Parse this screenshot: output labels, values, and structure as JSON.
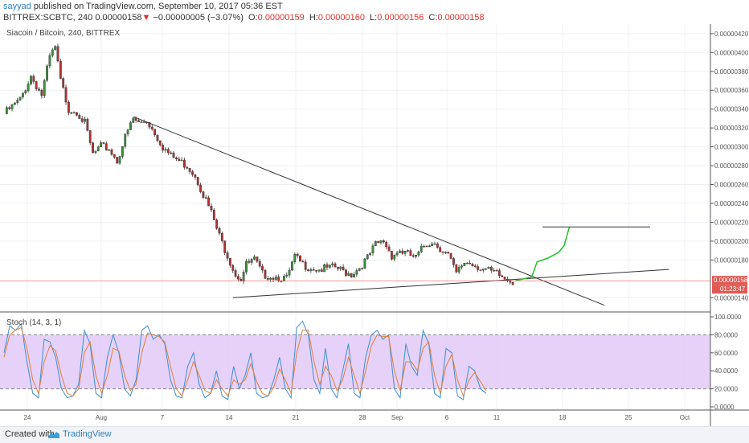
{
  "header": {
    "user": "sayyad",
    "published": "published on TradingView.com, September 10, 2017 05:36 EST",
    "symbol": "BITTREX:SCBTC, 240",
    "last": "0.00000158",
    "arrow": "▼",
    "change": "−0.00000005 (−3.07%)",
    "o_label": "O:",
    "o_val": "0.00000159",
    "h_label": "H:",
    "h_val": "0.00000160",
    "l_label": "L:",
    "l_val": "0.00000156",
    "c_label": "C:",
    "c_val": "0.00000158"
  },
  "footer": {
    "created": "Created with",
    "brand": "TradingView"
  },
  "colors": {
    "up": "#3c8c3c",
    "down": "#b03030",
    "stoch_k": "#3d8fd6",
    "stoch_d": "#e0813a",
    "band": "#e3ccf7",
    "projection": "#22c22a",
    "price_line": "#e05a55"
  },
  "chart_data": [
    {
      "type": "candlestick",
      "title": "Siacoin / Bitcoin, 240, BITTREX",
      "ylim": [
        1.3e-06,
        4.25e-06
      ],
      "y_ticks": [
        "0.00000420",
        "0.00000400",
        "0.00000380",
        "0.00000360",
        "0.00000340",
        "0.00000320",
        "0.00000300",
        "0.00000280",
        "0.00000260",
        "0.00000240",
        "0.00000220",
        "0.00000200",
        "0.00000180",
        "0.00000140"
      ],
      "x_ticks": [
        "24",
        "Aug",
        "7",
        "14",
        "21",
        "28",
        "Sep",
        "6",
        "11",
        "18",
        "25",
        "Oct"
      ],
      "last_price_label": "0.00000158",
      "countdown": "01:23:47",
      "close_path": [
        [
          0,
          3.35e-06
        ],
        [
          6,
          3.5e-06
        ],
        [
          10,
          3.75e-06
        ],
        [
          14,
          3.55e-06
        ],
        [
          17,
          3.95e-06
        ],
        [
          19,
          4.05e-06
        ],
        [
          21,
          3.7e-06
        ],
        [
          24,
          3.4e-06
        ],
        [
          27,
          3.38e-06
        ],
        [
          30,
          3.25e-06
        ],
        [
          33,
          2.92e-06
        ],
        [
          36,
          3e-06
        ],
        [
          39,
          2.98e-06
        ],
        [
          42,
          2.85e-06
        ],
        [
          45,
          3.1e-06
        ],
        [
          48,
          3.3e-06
        ],
        [
          50,
          3.25e-06
        ],
        [
          53,
          3.28e-06
        ],
        [
          56,
          3.15e-06
        ],
        [
          59,
          3e-06
        ],
        [
          62,
          2.9e-06
        ],
        [
          65,
          2.85e-06
        ],
        [
          68,
          2.8e-06
        ],
        [
          71,
          2.7e-06
        ],
        [
          74,
          2.5e-06
        ],
        [
          77,
          2.3e-06
        ],
        [
          80,
          2.05e-06
        ],
        [
          83,
          1.85e-06
        ],
        [
          86,
          1.65e-06
        ],
        [
          88,
          1.6e-06
        ],
        [
          90,
          1.75e-06
        ],
        [
          93,
          1.8e-06
        ],
        [
          96,
          1.65e-06
        ],
        [
          99,
          1.63e-06
        ],
        [
          102,
          1.62e-06
        ],
        [
          105,
          1.6e-06
        ],
        [
          108,
          1.83e-06
        ],
        [
          111,
          1.75e-06
        ],
        [
          114,
          1.72e-06
        ],
        [
          117,
          1.7e-06
        ],
        [
          120,
          1.71e-06
        ],
        [
          123,
          1.72e-06
        ],
        [
          126,
          1.68e-06
        ],
        [
          129,
          1.65e-06
        ],
        [
          132,
          1.72e-06
        ],
        [
          135,
          1.82e-06
        ],
        [
          138,
          1.96e-06
        ],
        [
          141,
          2e-06
        ],
        [
          144,
          1.85e-06
        ],
        [
          147,
          1.9e-06
        ],
        [
          150,
          1.86e-06
        ],
        [
          153,
          1.82e-06
        ],
        [
          156,
          1.95e-06
        ],
        [
          159,
          2e-06
        ],
        [
          162,
          1.93e-06
        ],
        [
          165,
          1.85e-06
        ],
        [
          168,
          1.65e-06
        ],
        [
          171,
          1.78e-06
        ],
        [
          174,
          1.76e-06
        ],
        [
          177,
          1.72e-06
        ],
        [
          180,
          1.68e-06
        ],
        [
          183,
          1.65e-06
        ],
        [
          186,
          1.6e-06
        ],
        [
          189,
          1.58e-06
        ]
      ],
      "resistance_line": [
        [
          48,
          3.32e-06
        ],
        [
          223,
          1.32e-06
        ]
      ],
      "support_line": [
        [
          85,
          1.4e-06
        ],
        [
          247,
          1.7e-06
        ]
      ],
      "target_line": [
        [
          200,
          2.15e-06
        ],
        [
          240,
          2.15e-06
        ]
      ],
      "projection_path": [
        [
          190,
          1.58e-06
        ],
        [
          196,
          1.62e-06
        ],
        [
          198,
          1.78e-06
        ],
        [
          202,
          1.82e-06
        ],
        [
          206,
          1.88e-06
        ],
        [
          208,
          1.95e-06
        ],
        [
          210,
          2.15e-06
        ]
      ]
    },
    {
      "type": "line",
      "title": "Stoch (14, 3, 1)",
      "ylim": [
        0,
        100
      ],
      "y_ticks": [
        "100.0000",
        "80.0000",
        "60.0000",
        "40.0000",
        "20.0000",
        "0.0000"
      ],
      "band": [
        20,
        80
      ],
      "k": [
        60,
        90,
        85,
        92,
        50,
        15,
        10,
        75,
        72,
        55,
        20,
        10,
        12,
        25,
        85,
        70,
        15,
        10,
        55,
        80,
        60,
        20,
        12,
        30,
        85,
        90,
        75,
        80,
        70,
        30,
        12,
        10,
        45,
        60,
        25,
        10,
        15,
        40,
        12,
        8,
        45,
        20,
        35,
        60,
        15,
        10,
        12,
        30,
        55,
        20,
        10,
        88,
        95,
        80,
        30,
        15,
        65,
        20,
        10,
        40,
        70,
        15,
        10,
        55,
        80,
        85,
        75,
        80,
        20,
        10,
        70,
        45,
        35,
        85,
        70,
        15,
        10,
        65,
        60,
        12,
        8,
        45,
        40,
        20,
        15
      ],
      "d": [
        55,
        80,
        85,
        88,
        65,
        30,
        15,
        50,
        68,
        62,
        35,
        15,
        12,
        20,
        60,
        72,
        35,
        15,
        35,
        65,
        62,
        35,
        18,
        25,
        60,
        82,
        80,
        78,
        72,
        45,
        20,
        12,
        30,
        50,
        35,
        18,
        15,
        30,
        20,
        12,
        30,
        25,
        30,
        48,
        28,
        15,
        12,
        22,
        42,
        30,
        15,
        60,
        85,
        85,
        50,
        25,
        45,
        35,
        18,
        30,
        55,
        35,
        15,
        40,
        68,
        80,
        78,
        78,
        40,
        18,
        50,
        50,
        40,
        65,
        72,
        35,
        15,
        45,
        58,
        30,
        12,
        30,
        38,
        28,
        18
      ]
    }
  ]
}
